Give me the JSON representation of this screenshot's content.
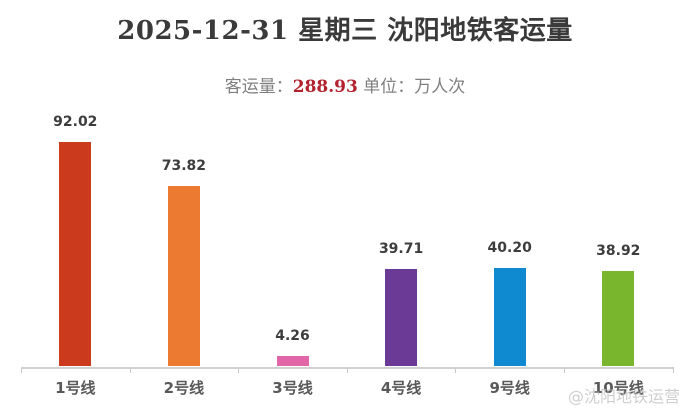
{
  "header": {
    "title": "2025-12-31 星期三 沈阳地铁客运量",
    "subtitle_prefix": "客运量：",
    "subtitle_total": "288.93",
    "subtitle_suffix": " 单位：万人次"
  },
  "watermark": "@沈阳地铁运营",
  "chart_data": {
    "type": "bar",
    "title": "2025-12-31 星期三 沈阳地铁客运量",
    "subtitle": "客运量：288.93 单位：万人次",
    "categories": [
      "1号线",
      "2号线",
      "3号线",
      "4号线",
      "9号线",
      "10号线"
    ],
    "values": [
      92.02,
      73.82,
      4.26,
      39.71,
      40.2,
      38.92
    ],
    "value_labels": [
      "92.02",
      "73.82",
      "4.26",
      "39.71",
      "40.20",
      "38.92"
    ],
    "colors": [
      "#cc3a1e",
      "#ec7a30",
      "#e066a8",
      "#6b3a96",
      "#0f8ad0",
      "#7ab52e"
    ],
    "total": 288.93,
    "unit": "万人次",
    "xlabel": "",
    "ylabel": "",
    "grid": false,
    "legend": "none"
  }
}
